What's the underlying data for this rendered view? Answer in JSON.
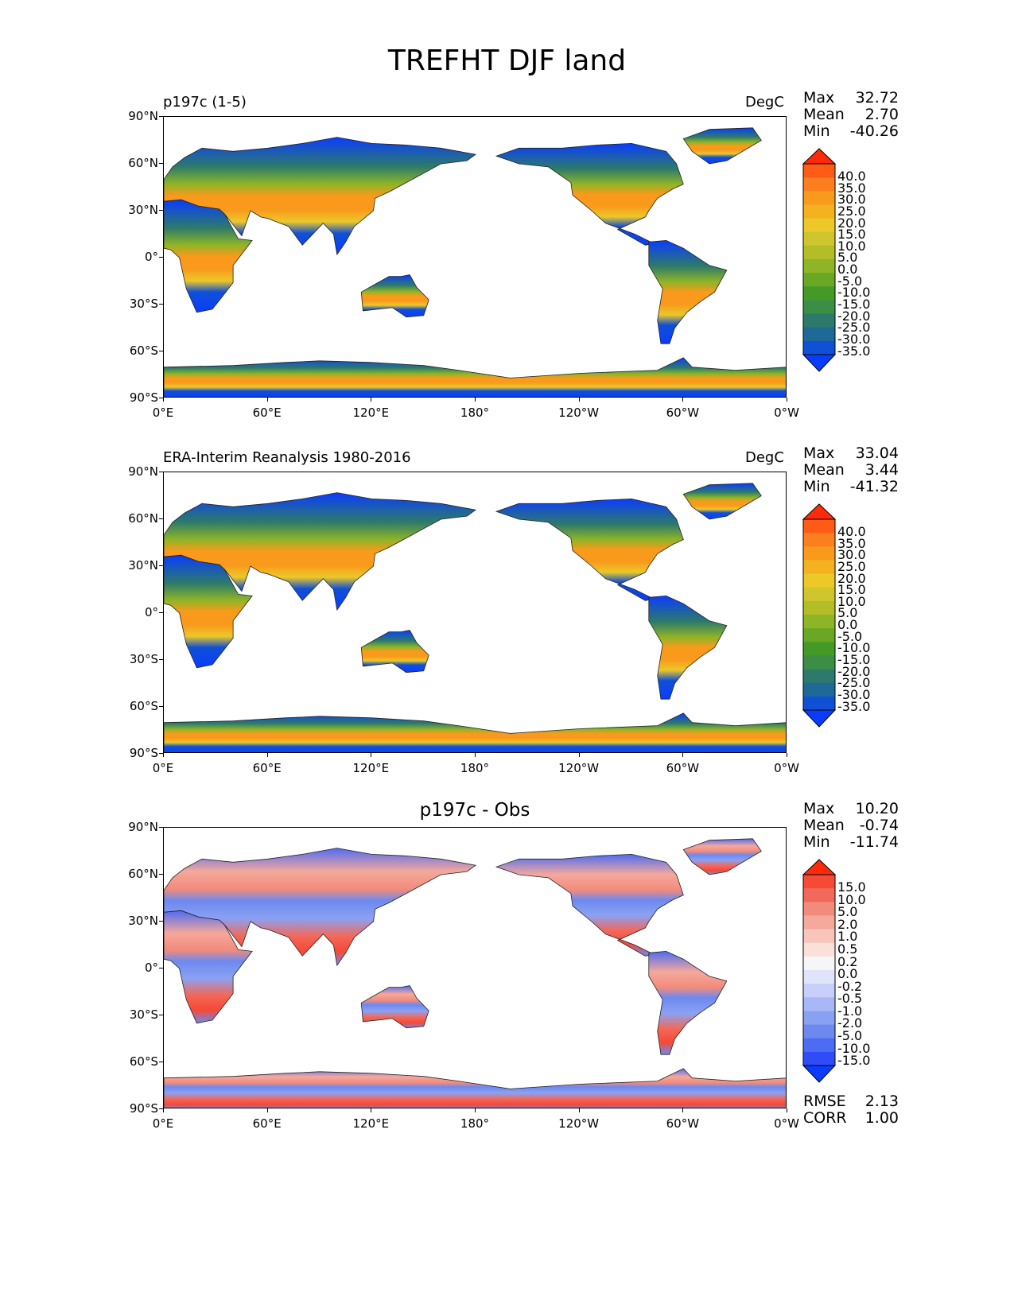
{
  "title": "TREFHT DJF land",
  "panels": [
    {
      "left_title": "p197c (1-5)",
      "center_title": "",
      "units": "DegC",
      "stats": [
        {
          "label": "Max",
          "value": "32.72"
        },
        {
          "label": "Mean",
          "value": "2.70"
        },
        {
          "label": "Min",
          "value": "-40.26"
        }
      ],
      "colorbar": {
        "labels": [
          "40.0",
          "35.0",
          "30.0",
          "25.0",
          "20.0",
          "15.0",
          "10.0",
          "5.0",
          "0.0",
          "-5.0",
          "-10.0",
          "-15.0",
          "-20.0",
          "-25.0",
          "-30.0",
          "-35.0"
        ],
        "colors": [
          "#fe2a09",
          "#fe5b17",
          "#fb7e1f",
          "#f99a1c",
          "#f4b221",
          "#ecc829",
          "#cfc52c",
          "#b3bd27",
          "#8eb526",
          "#69a725",
          "#459a27",
          "#3d8e45",
          "#2d7a6a",
          "#1e6997",
          "#1050d6",
          "#0a3cff"
        ]
      }
    },
    {
      "left_title": "ERA-Interim Reanalysis 1980-2016",
      "center_title": "",
      "units": "DegC",
      "stats": [
        {
          "label": "Max",
          "value": "33.04"
        },
        {
          "label": "Mean",
          "value": "3.44"
        },
        {
          "label": "Min",
          "value": "-41.32"
        }
      ],
      "colorbar": {
        "labels": [
          "40.0",
          "35.0",
          "30.0",
          "25.0",
          "20.0",
          "15.0",
          "10.0",
          "5.0",
          "0.0",
          "-5.0",
          "-10.0",
          "-15.0",
          "-20.0",
          "-25.0",
          "-30.0",
          "-35.0"
        ],
        "colors": [
          "#fe2a09",
          "#fe5b17",
          "#fb7e1f",
          "#f99a1c",
          "#f4b221",
          "#ecc829",
          "#cfc52c",
          "#b3bd27",
          "#8eb526",
          "#69a725",
          "#459a27",
          "#3d8e45",
          "#2d7a6a",
          "#1e6997",
          "#1050d6",
          "#0a3cff"
        ]
      }
    },
    {
      "left_title": "",
      "center_title": "p197c - Obs",
      "units": "",
      "stats": [
        {
          "label": "Max",
          "value": "10.20"
        },
        {
          "label": "Mean",
          "value": "-0.74"
        },
        {
          "label": "Min",
          "value": "-11.74"
        }
      ],
      "extra_stats": [
        {
          "label": "RMSE",
          "value": "2.13"
        },
        {
          "label": "CORR",
          "value": "1.00"
        }
      ],
      "colorbar": {
        "labels": [
          "15.0",
          "10.0",
          "5.0",
          "2.0",
          "1.0",
          "0.5",
          "0.2",
          "0.0",
          "-0.2",
          "-0.5",
          "-1.0",
          "-2.0",
          "-5.0",
          "-10.0",
          "-15.0"
        ],
        "colors": [
          "#fe2a09",
          "#f64a36",
          "#f2685a",
          "#f28b7c",
          "#f5a89c",
          "#f8c5bc",
          "#fbe0da",
          "#f6f6f8",
          "#e0e4fa",
          "#c7cffa",
          "#a8b8f7",
          "#8aa1f3",
          "#6d89f0",
          "#4e6cf3",
          "#2f4cf8",
          "#0a3cff"
        ]
      }
    }
  ],
  "axes": {
    "yticks": [
      "90°N",
      "60°N",
      "30°N",
      "0°",
      "30°S",
      "60°S",
      "90°S"
    ],
    "xticks": [
      "0°E",
      "60°E",
      "120°E",
      "180°",
      "120°W",
      "60°W",
      "0°W"
    ]
  },
  "icons": {
    "map": "world-map-icon"
  }
}
